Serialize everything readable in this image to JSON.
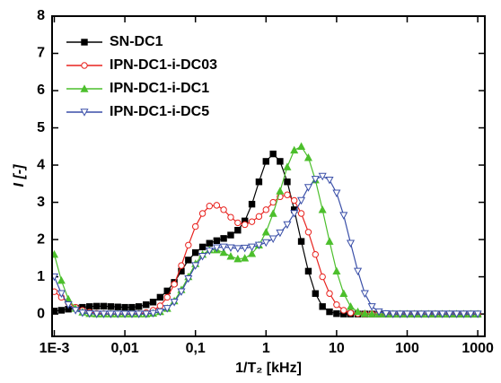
{
  "chart_data": {
    "type": "line",
    "x_label": "1/T₂ [kHz]",
    "y_label": "I [-]",
    "x_log": true,
    "xlim": [
      0.00093,
      1260
    ],
    "ylim": [
      -0.6,
      8
    ],
    "xticks": [
      {
        "value": 0.001,
        "label": "1E-3"
      },
      {
        "value": 0.01,
        "label": "0,01"
      },
      {
        "value": 0.1,
        "label": "0,1"
      },
      1,
      10,
      100,
      1000
    ],
    "yticks": [
      0,
      1,
      2,
      3,
      4,
      5,
      6,
      7,
      8
    ],
    "legend": "upper-left",
    "x": [
      0.001,
      0.00126,
      0.00158,
      0.002,
      0.00251,
      0.00316,
      0.00398,
      0.00501,
      0.00631,
      0.00794,
      0.01,
      0.0126,
      0.0158,
      0.02,
      0.0251,
      0.0316,
      0.0398,
      0.0501,
      0.0631,
      0.0794,
      0.1,
      0.126,
      0.158,
      0.2,
      0.251,
      0.316,
      0.398,
      0.501,
      0.631,
      0.794,
      1,
      1.26,
      1.58,
      2,
      2.51,
      3.16,
      3.98,
      5.01,
      6.31,
      7.94,
      10,
      12.6,
      15.8,
      20,
      25.1,
      31.6,
      39.8,
      50.1,
      63.1,
      79.4,
      100,
      126,
      158,
      200,
      251,
      316,
      398,
      501,
      631,
      794,
      1000
    ],
    "series": [
      {
        "name": "SN-DC1",
        "color": "#000000",
        "marker": "square",
        "values": [
          0.08,
          0.1,
          0.13,
          0.16,
          0.18,
          0.2,
          0.21,
          0.21,
          0.2,
          0.19,
          0.18,
          0.18,
          0.2,
          0.25,
          0.32,
          0.45,
          0.62,
          0.85,
          1.15,
          1.45,
          1.65,
          1.8,
          1.9,
          1.97,
          2.03,
          2.12,
          2.25,
          2.5,
          2.95,
          3.55,
          4.1,
          4.3,
          4.1,
          3.55,
          2.8,
          1.95,
          1.15,
          0.55,
          0.2,
          0.06,
          0.01,
          0,
          0,
          0,
          0,
          0,
          0,
          0,
          0,
          0,
          0,
          0,
          0,
          0,
          0,
          0,
          0,
          0,
          0,
          0,
          0
        ]
      },
      {
        "name": "IPN-DC1-i-DC03",
        "color": "#e8231f",
        "marker": "circle",
        "values": [
          0.6,
          0.45,
          0.3,
          0.18,
          0.1,
          0.05,
          0.02,
          0.01,
          0,
          0,
          0,
          0,
          0.01,
          0.04,
          0.1,
          0.22,
          0.45,
          0.8,
          1.3,
          1.85,
          2.35,
          2.7,
          2.9,
          2.92,
          2.8,
          2.6,
          2.45,
          2.4,
          2.48,
          2.62,
          2.8,
          3.0,
          3.15,
          3.2,
          3.05,
          2.7,
          2.2,
          1.6,
          1.0,
          0.55,
          0.25,
          0.1,
          0.03,
          0.01,
          0,
          0,
          0,
          0,
          0,
          0,
          0,
          0,
          0,
          0,
          0,
          0,
          0,
          0,
          0,
          0,
          0
        ]
      },
      {
        "name": "IPN-DC1-i-DC1",
        "color": "#4cbf2c",
        "marker": "triangle",
        "values": [
          1.6,
          0.9,
          0.4,
          0.15,
          0.05,
          0.01,
          0,
          0,
          0,
          0,
          0,
          0,
          0,
          0,
          0.02,
          0.06,
          0.15,
          0.35,
          0.65,
          1.0,
          1.35,
          1.6,
          1.72,
          1.72,
          1.65,
          1.55,
          1.48,
          1.5,
          1.62,
          1.85,
          2.2,
          2.7,
          3.3,
          3.95,
          4.4,
          4.5,
          4.2,
          3.6,
          2.8,
          1.95,
          1.15,
          0.55,
          0.2,
          0.06,
          0.01,
          0,
          0,
          0,
          0,
          0,
          0,
          0,
          0,
          0,
          0,
          0,
          0,
          0,
          0,
          0,
          0
        ]
      },
      {
        "name": "IPN-DC1-i-DC5",
        "color": "#3a4fa8",
        "marker": "triangle-down",
        "values": [
          1.0,
          0.55,
          0.25,
          0.1,
          0.03,
          0.01,
          0,
          0,
          0,
          0,
          0,
          0,
          0,
          0,
          0.02,
          0.06,
          0.15,
          0.32,
          0.6,
          0.95,
          1.3,
          1.55,
          1.7,
          1.78,
          1.8,
          1.78,
          1.76,
          1.77,
          1.8,
          1.85,
          1.92,
          2.02,
          2.18,
          2.4,
          2.7,
          3.05,
          3.4,
          3.62,
          3.7,
          3.6,
          3.25,
          2.65,
          1.9,
          1.15,
          0.55,
          0.2,
          0.06,
          0.01,
          0,
          0,
          0,
          0,
          0,
          0,
          0,
          0,
          0,
          0,
          0,
          0,
          0
        ]
      }
    ]
  }
}
